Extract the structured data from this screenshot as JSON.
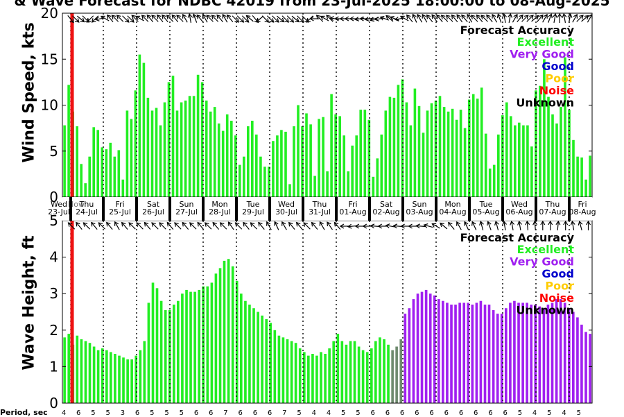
{
  "title": "& Wave Forecast for NDBC 42019 from 23-Jul-2025 18:00:00 to 08-Aug-2025",
  "period_label": "Period, sec",
  "colors": {
    "Excellent": "#22ee22",
    "Very Good": "#a020f0",
    "Good": "#0000cc",
    "Poor": "#ffcc00",
    "Noise": "#ff0000",
    "Unknown": "#000000",
    "transition": "#6e8a6e",
    "now_line": "#ee1111"
  },
  "legend": {
    "title": "Forecast Accuracy",
    "items": [
      "Excellent",
      "Very Good",
      "Good",
      "Poor",
      "Noise",
      "Unknown"
    ]
  },
  "days": [
    {
      "dow": "Wed",
      "date": "23-Jul"
    },
    {
      "dow": "Thu",
      "date": "24-Jul"
    },
    {
      "dow": "Fri",
      "date": "25-Jul"
    },
    {
      "dow": "Sat",
      "date": "26-Jul"
    },
    {
      "dow": "Sun",
      "date": "27-Jul"
    },
    {
      "dow": "Mon",
      "date": "28-Jul"
    },
    {
      "dow": "Tue",
      "date": "29-Jul"
    },
    {
      "dow": "Wed",
      "date": "30-Jul"
    },
    {
      "dow": "Thu",
      "date": "31-Jul"
    },
    {
      "dow": "Fri",
      "date": "01-Aug"
    },
    {
      "dow": "Sat",
      "date": "02-Aug"
    },
    {
      "dow": "Sun",
      "date": "03-Aug"
    },
    {
      "dow": "Mon",
      "date": "04-Aug"
    },
    {
      "dow": "Tue",
      "date": "05-Aug"
    },
    {
      "dow": "Wed",
      "date": "06-Aug"
    },
    {
      "dow": "Thu",
      "date": "07-Aug"
    },
    {
      "dow": "Fri",
      "date": "08-Aug"
    }
  ],
  "now_label": "Now",
  "chart_data": [
    {
      "type": "bar",
      "ylabel": "Wind Speed, kts",
      "ylim": [
        0,
        20
      ],
      "yticks": [
        0,
        5,
        10,
        15,
        20
      ],
      "x_start": "23-Jul-2025 18:00",
      "x_end": "08-Aug-2025",
      "grid": "vertical dotted at midnight",
      "values": [
        7.8,
        12.2,
        9.3,
        7.7,
        3.6,
        1.5,
        4.4,
        7.6,
        7.3,
        5.4,
        5.2,
        5.9,
        4.4,
        5.1,
        1.9,
        9.4,
        8.5,
        11.6,
        15.5,
        14.6,
        10.8,
        9.4,
        9.7,
        7.8,
        10.3,
        12.5,
        13.2,
        9.4,
        10.3,
        10.5,
        11.0,
        11.0,
        13.3,
        12.5,
        10.5,
        9.3,
        9.8,
        8.0,
        7.2,
        9.0,
        8.3,
        6.7,
        3.5,
        4.4,
        7.7,
        8.3,
        6.8,
        4.4,
        3.3,
        3.3,
        6.1,
        6.7,
        7.3,
        7.1,
        1.4,
        7.7,
        10.0,
        7.7,
        9.1,
        7.9,
        2.3,
        8.5,
        8.7,
        2.8,
        11.2,
        9.0,
        8.8,
        6.7,
        2.8,
        5.6,
        6.7,
        9.5,
        9.5,
        8.4,
        2.2,
        4.2,
        6.8,
        9.4,
        10.9,
        10.8,
        12.2,
        12.8,
        10.3,
        7.8,
        11.8,
        9.9,
        7.0,
        9.4,
        10.2,
        10.5,
        11.0,
        9.8,
        9.3,
        9.6,
        8.4,
        9.5,
        7.5,
        10.6,
        11.2,
        10.7,
        11.9,
        6.9,
        3.1,
        3.5,
        6.8,
        8.9,
        10.3,
        8.8,
        7.8,
        8.1,
        7.8,
        7.8,
        5.5,
        11.6,
        12.1,
        15.0,
        10.9,
        9.0,
        8.0,
        9.8,
        15.2,
        9.5,
        6.2,
        4.4,
        4.3,
        1.9,
        4.5
      ],
      "color_runs": [
        {
          "from": 0,
          "to": 126,
          "rating": "Excellent"
        }
      ],
      "directions": [
        140,
        135,
        130,
        135,
        225,
        225,
        260,
        300,
        320,
        315,
        315,
        135,
        135,
        315,
        300,
        315,
        320,
        315,
        320,
        320,
        315,
        320,
        315,
        330,
        350,
        340,
        320,
        330,
        315,
        315,
        320,
        330,
        320,
        135,
        135,
        135,
        310,
        140,
        230,
        135,
        135,
        135,
        130,
        135,
        135,
        130,
        135,
        135,
        225,
        270,
        315,
        300,
        315,
        280,
        270,
        270,
        270,
        270,
        260,
        270,
        260,
        250,
        260,
        290,
        310,
        290,
        260,
        300,
        320,
        335,
        330,
        330,
        320,
        325,
        320,
        315,
        315,
        320,
        325,
        320,
        330,
        315,
        320,
        315,
        320,
        330,
        340,
        350,
        10,
        30,
        40,
        45,
        45,
        50,
        40,
        30,
        20,
        10,
        0,
        350,
        10,
        30,
        45,
        50,
        30
      ]
    },
    {
      "type": "bar",
      "ylabel": "Wave Height, ft",
      "ylim": [
        0,
        5
      ],
      "yticks": [
        0,
        1,
        2,
        3,
        4,
        5
      ],
      "values": [
        1.8,
        1.9,
        1.6,
        1.85,
        1.75,
        1.7,
        1.65,
        1.55,
        1.45,
        1.5,
        1.45,
        1.4,
        1.35,
        1.3,
        1.25,
        1.2,
        1.2,
        1.3,
        1.45,
        1.7,
        2.75,
        3.3,
        3.15,
        2.8,
        2.55,
        2.55,
        2.7,
        2.8,
        3.0,
        3.1,
        3.05,
        3.05,
        3.1,
        3.2,
        3.2,
        3.3,
        3.55,
        3.7,
        3.9,
        3.95,
        3.75,
        3.35,
        3.0,
        2.8,
        2.7,
        2.6,
        2.5,
        2.4,
        2.3,
        2.2,
        2.0,
        1.85,
        1.8,
        1.75,
        1.7,
        1.65,
        1.5,
        1.4,
        1.3,
        1.35,
        1.3,
        1.4,
        1.35,
        1.5,
        1.7,
        1.9,
        1.7,
        1.6,
        1.7,
        1.7,
        1.55,
        1.45,
        1.4,
        1.5,
        1.7,
        1.8,
        1.75,
        1.6,
        1.45,
        1.55,
        1.75,
        2.45,
        2.6,
        2.85,
        3.0,
        3.05,
        3.1,
        3.0,
        2.95,
        2.85,
        2.8,
        2.75,
        2.7,
        2.7,
        2.75,
        2.75,
        2.75,
        2.7,
        2.75,
        2.8,
        2.7,
        2.7,
        2.55,
        2.45,
        2.45,
        2.6,
        2.75,
        2.8,
        2.75,
        2.75,
        2.75,
        2.7,
        2.7,
        2.65,
        2.6,
        2.7,
        2.75,
        2.85,
        2.85,
        2.75,
        2.6,
        2.5,
        2.35,
        2.15,
        1.95,
        1.9
      ],
      "color_runs": [
        {
          "from": 0,
          "to": 77,
          "rating": "Excellent"
        },
        {
          "from": 78,
          "to": 80,
          "rating": "transition"
        },
        {
          "from": 81,
          "to": 126,
          "rating": "Very Good"
        }
      ],
      "directions": [
        315,
        320,
        315,
        320,
        315,
        320,
        330,
        320,
        315,
        315,
        320,
        315,
        315,
        320,
        315,
        320,
        315,
        320,
        315,
        320,
        315,
        325,
        315,
        320,
        315,
        320,
        330,
        335,
        330,
        320,
        320,
        315,
        320,
        330,
        325,
        320,
        270,
        265,
        270,
        270,
        275,
        270,
        280,
        275,
        270,
        270,
        275,
        285,
        300,
        310,
        320,
        330,
        335,
        335,
        345,
        340,
        345,
        350,
        350,
        350,
        355,
        355,
        0,
        0,
        5,
        0,
        350,
        345,
        0
      ],
      "period_ticks": [
        4,
        6,
        5,
        5,
        3,
        6,
        5,
        5,
        5,
        6,
        6,
        7,
        6,
        6,
        6,
        7,
        5,
        4,
        4,
        5,
        5,
        6,
        6,
        6,
        6,
        6,
        6,
        6,
        6,
        6,
        6,
        5,
        4,
        5,
        4,
        5
      ],
      "period_scale": "unknown"
    }
  ]
}
